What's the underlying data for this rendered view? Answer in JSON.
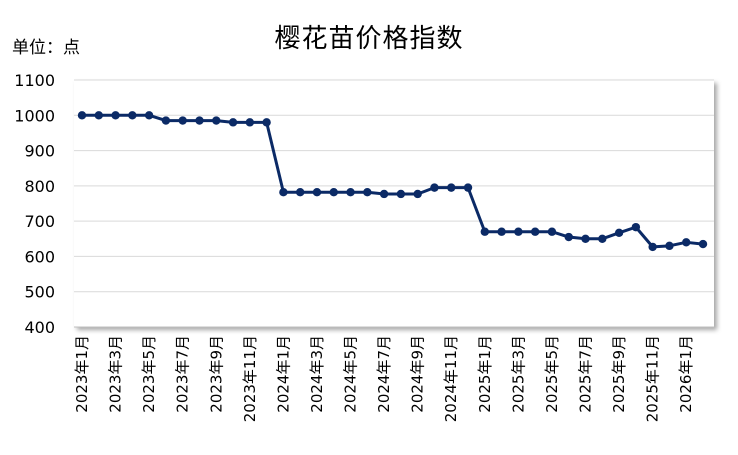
{
  "chart_data": {
    "type": "line",
    "title": "樱花苗价格指数",
    "unit_label": "单位：点",
    "xlabel": "",
    "ylabel": "",
    "ylim": [
      400,
      1100
    ],
    "yticks": [
      1100,
      1000,
      900,
      800,
      700,
      600,
      500,
      400
    ],
    "grid": true,
    "legend": "none",
    "line_color": "#0b2a66",
    "x": [
      "2023年1月",
      "2023年2月",
      "2023年3月",
      "2023年4月",
      "2023年5月",
      "2023年6月",
      "2023年7月",
      "2023年8月",
      "2023年9月",
      "2023年10月",
      "2023年11月",
      "2023年12月",
      "2024年1月",
      "2024年2月",
      "2024年3月",
      "2024年4月",
      "2024年5月",
      "2024年6月",
      "2024年7月",
      "2024年8月",
      "2024年9月",
      "2024年10月",
      "2024年11月",
      "2024年12月",
      "2025年1月",
      "2025年2月",
      "2025年3月",
      "2025年4月",
      "2025年5月",
      "2025年6月",
      "2025年7月",
      "2025年8月",
      "2025年9月",
      "2025年10月",
      "2025年11月",
      "2025年12月",
      "2026年1月",
      "2026年2月"
    ],
    "xtick_labels": [
      "2023年1月",
      "2023年3月",
      "2023年5月",
      "2023年7月",
      "2023年9月",
      "2023年11月",
      "2024年1月",
      "2024年3月",
      "2024年5月",
      "2024年7月",
      "2024年9月",
      "2024年11月",
      "2025年1月",
      "2025年3月",
      "2025年5月",
      "2025年7月",
      "2025年9月",
      "2025年11月",
      "2026年1月"
    ],
    "series": [
      {
        "values": [
          1000,
          1000,
          1000,
          1000,
          1000,
          985,
          985,
          985,
          985,
          980,
          980,
          980,
          782,
          782,
          782,
          782,
          782,
          782,
          777,
          777,
          777,
          795,
          795,
          795,
          670,
          670,
          670,
          670,
          670,
          655,
          650,
          650,
          667,
          683,
          627,
          630,
          640,
          635
        ]
      }
    ]
  }
}
